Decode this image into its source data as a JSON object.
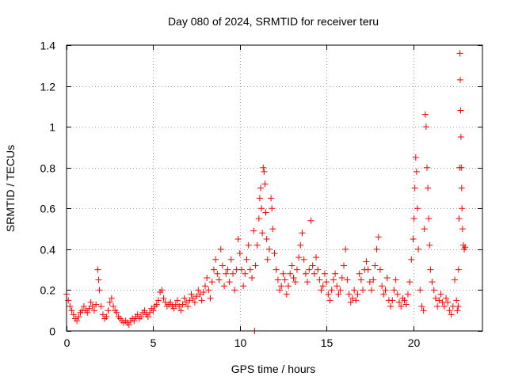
{
  "chart_data": {
    "type": "scatter",
    "title": "Day 080 of 2024, SRMTID for receiver teru",
    "xlabel": "GPS time / hours",
    "ylabel": "SRMTID / TECUs",
    "xlim": [
      0,
      24
    ],
    "ylim": [
      0,
      1.4
    ],
    "xticks": [
      0,
      5,
      10,
      15,
      20
    ],
    "xtick_labels": [
      "0",
      "5",
      "10",
      "15",
      "20"
    ],
    "yticks": [
      0,
      0.2,
      0.4,
      0.6,
      0.8,
      1.0,
      1.2,
      1.4
    ],
    "ytick_labels": [
      "0",
      "0.2",
      "0.4",
      "0.6",
      "0.8",
      "1",
      "1.2",
      "1.4"
    ],
    "grid": true,
    "marker": "plus",
    "color": "#ff0000",
    "series": [
      {
        "name": "SRMTID",
        "points": [
          [
            0.0,
            0.18
          ],
          [
            0.1,
            0.15
          ],
          [
            0.2,
            0.12
          ],
          [
            0.3,
            0.1
          ],
          [
            0.4,
            0.08
          ],
          [
            0.5,
            0.06
          ],
          [
            0.6,
            0.05
          ],
          [
            0.7,
            0.07
          ],
          [
            0.8,
            0.09
          ],
          [
            0.9,
            0.1
          ],
          [
            1.0,
            0.12
          ],
          [
            1.1,
            0.1
          ],
          [
            1.2,
            0.09
          ],
          [
            1.3,
            0.11
          ],
          [
            1.4,
            0.14
          ],
          [
            1.5,
            0.12
          ],
          [
            1.6,
            0.1
          ],
          [
            1.7,
            0.13
          ],
          [
            1.8,
            0.3
          ],
          [
            1.85,
            0.25
          ],
          [
            1.9,
            0.2
          ],
          [
            2.0,
            0.12
          ],
          [
            2.1,
            0.08
          ],
          [
            2.2,
            0.06
          ],
          [
            2.3,
            0.07
          ],
          [
            2.4,
            0.1
          ],
          [
            2.5,
            0.14
          ],
          [
            2.6,
            0.16
          ],
          [
            2.7,
            0.12
          ],
          [
            2.8,
            0.1
          ],
          [
            2.9,
            0.09
          ],
          [
            3.0,
            0.07
          ],
          [
            3.1,
            0.06
          ],
          [
            3.2,
            0.05
          ],
          [
            3.3,
            0.04
          ],
          [
            3.4,
            0.05
          ],
          [
            3.5,
            0.04
          ],
          [
            3.6,
            0.03
          ],
          [
            3.7,
            0.05
          ],
          [
            3.8,
            0.06
          ],
          [
            3.9,
            0.05
          ],
          [
            4.0,
            0.07
          ],
          [
            4.1,
            0.08
          ],
          [
            4.2,
            0.06
          ],
          [
            4.3,
            0.07
          ],
          [
            4.4,
            0.09
          ],
          [
            4.5,
            0.1
          ],
          [
            4.6,
            0.08
          ],
          [
            4.7,
            0.07
          ],
          [
            4.8,
            0.09
          ],
          [
            4.9,
            0.11
          ],
          [
            5.0,
            0.1
          ],
          [
            5.1,
            0.12
          ],
          [
            5.2,
            0.13
          ],
          [
            5.3,
            0.15
          ],
          [
            5.4,
            0.19
          ],
          [
            5.5,
            0.2
          ],
          [
            5.6,
            0.16
          ],
          [
            5.7,
            0.14
          ],
          [
            5.8,
            0.12
          ],
          [
            5.9,
            0.13
          ],
          [
            6.0,
            0.14
          ],
          [
            6.1,
            0.12
          ],
          [
            6.2,
            0.11
          ],
          [
            6.3,
            0.13
          ],
          [
            6.4,
            0.15
          ],
          [
            6.5,
            0.12
          ],
          [
            6.6,
            0.1
          ],
          [
            6.7,
            0.13
          ],
          [
            6.8,
            0.16
          ],
          [
            6.9,
            0.14
          ],
          [
            7.0,
            0.12
          ],
          [
            7.1,
            0.15
          ],
          [
            7.2,
            0.18
          ],
          [
            7.3,
            0.16
          ],
          [
            7.4,
            0.14
          ],
          [
            7.5,
            0.17
          ],
          [
            7.6,
            0.2
          ],
          [
            7.7,
            0.18
          ],
          [
            7.8,
            0.15
          ],
          [
            7.9,
            0.19
          ],
          [
            8.0,
            0.22
          ],
          [
            8.1,
            0.26
          ],
          [
            8.2,
            0.2
          ],
          [
            8.3,
            0.16
          ],
          [
            8.4,
            0.24
          ],
          [
            8.5,
            0.3
          ],
          [
            8.6,
            0.35
          ],
          [
            8.7,
            0.28
          ],
          [
            8.8,
            0.25
          ],
          [
            8.9,
            0.4
          ],
          [
            9.0,
            0.32
          ],
          [
            9.1,
            0.22
          ],
          [
            9.2,
            0.28
          ],
          [
            9.3,
            0.3
          ],
          [
            9.4,
            0.24
          ],
          [
            9.5,
            0.35
          ],
          [
            9.6,
            0.28
          ],
          [
            9.7,
            0.2
          ],
          [
            9.8,
            0.3
          ],
          [
            9.9,
            0.45
          ],
          [
            10.0,
            0.38
          ],
          [
            10.1,
            0.3
          ],
          [
            10.2,
            0.22
          ],
          [
            10.3,
            0.28
          ],
          [
            10.4,
            0.35
          ],
          [
            10.5,
            0.42
          ],
          [
            10.6,
            0.3
          ],
          [
            10.7,
            0.26
          ],
          [
            10.8,
            0.49
          ],
          [
            10.85,
            0.0
          ],
          [
            10.9,
            0.32
          ],
          [
            11.0,
            0.42
          ],
          [
            11.1,
            0.55
          ],
          [
            11.15,
            0.65
          ],
          [
            11.2,
            0.7
          ],
          [
            11.25,
            0.6
          ],
          [
            11.3,
            0.48
          ],
          [
            11.35,
            0.8
          ],
          [
            11.4,
            0.78
          ],
          [
            11.45,
            0.72
          ],
          [
            11.5,
            0.58
          ],
          [
            11.55,
            0.45
          ],
          [
            11.6,
            0.35
          ],
          [
            11.7,
            0.4
          ],
          [
            11.8,
            0.65
          ],
          [
            11.85,
            0.6
          ],
          [
            11.9,
            0.5
          ],
          [
            12.0,
            0.38
          ],
          [
            12.1,
            0.3
          ],
          [
            12.2,
            0.25
          ],
          [
            12.3,
            0.2
          ],
          [
            12.4,
            0.22
          ],
          [
            12.5,
            0.28
          ],
          [
            12.6,
            0.25
          ],
          [
            12.7,
            0.18
          ],
          [
            12.8,
            0.22
          ],
          [
            12.9,
            0.28
          ],
          [
            13.0,
            0.32
          ],
          [
            13.1,
            0.26
          ],
          [
            13.2,
            0.24
          ],
          [
            13.3,
            0.3
          ],
          [
            13.4,
            0.36
          ],
          [
            13.5,
            0.42
          ],
          [
            13.6,
            0.48
          ],
          [
            13.7,
            0.35
          ],
          [
            13.8,
            0.28
          ],
          [
            13.9,
            0.24
          ],
          [
            14.0,
            0.3
          ],
          [
            14.1,
            0.54
          ],
          [
            14.2,
            0.32
          ],
          [
            14.3,
            0.28
          ],
          [
            14.4,
            0.36
          ],
          [
            14.5,
            0.3
          ],
          [
            14.6,
            0.25
          ],
          [
            14.7,
            0.2
          ],
          [
            14.8,
            0.22
          ],
          [
            14.9,
            0.28
          ],
          [
            15.0,
            0.24
          ],
          [
            15.1,
            0.18
          ],
          [
            15.2,
            0.15
          ],
          [
            15.3,
            0.2
          ],
          [
            15.4,
            0.25
          ],
          [
            15.5,
            0.28
          ],
          [
            15.6,
            0.22
          ],
          [
            15.7,
            0.18
          ],
          [
            15.8,
            0.2
          ],
          [
            15.9,
            0.26
          ],
          [
            16.0,
            0.32
          ],
          [
            16.1,
            0.4
          ],
          [
            16.2,
            0.25
          ],
          [
            16.3,
            0.18
          ],
          [
            16.4,
            0.14
          ],
          [
            16.5,
            0.16
          ],
          [
            16.6,
            0.2
          ],
          [
            16.7,
            0.15
          ],
          [
            16.8,
            0.18
          ],
          [
            16.9,
            0.28
          ],
          [
            17.0,
            0.25
          ],
          [
            17.1,
            0.2
          ],
          [
            17.2,
            0.3
          ],
          [
            17.3,
            0.34
          ],
          [
            17.4,
            0.3
          ],
          [
            17.5,
            0.24
          ],
          [
            17.6,
            0.2
          ],
          [
            17.7,
            0.25
          ],
          [
            17.8,
            0.32
          ],
          [
            17.9,
            0.4
          ],
          [
            18.0,
            0.46
          ],
          [
            18.1,
            0.3
          ],
          [
            18.2,
            0.22
          ],
          [
            18.3,
            0.18
          ],
          [
            18.4,
            0.2
          ],
          [
            18.5,
            0.26
          ],
          [
            18.6,
            0.15
          ],
          [
            18.7,
            0.12
          ],
          [
            18.8,
            0.15
          ],
          [
            18.9,
            0.2
          ],
          [
            19.0,
            0.25
          ],
          [
            19.1,
            0.18
          ],
          [
            19.2,
            0.14
          ],
          [
            19.3,
            0.12
          ],
          [
            19.4,
            0.16
          ],
          [
            19.5,
            0.15
          ],
          [
            19.6,
            0.13
          ],
          [
            19.7,
            0.18
          ],
          [
            19.8,
            0.24
          ],
          [
            19.9,
            0.35
          ],
          [
            20.0,
            0.45
          ],
          [
            20.05,
            0.55
          ],
          [
            20.1,
            0.7
          ],
          [
            20.15,
            0.85
          ],
          [
            20.2,
            0.78
          ],
          [
            20.25,
            0.6
          ],
          [
            20.3,
            0.4
          ],
          [
            20.4,
            0.2
          ],
          [
            20.5,
            0.12
          ],
          [
            20.6,
            0.1
          ],
          [
            20.65,
            0.5
          ],
          [
            20.7,
            1.06
          ],
          [
            20.75,
            1.0
          ],
          [
            20.8,
            0.8
          ],
          [
            20.85,
            0.7
          ],
          [
            20.9,
            0.55
          ],
          [
            20.95,
            0.42
          ],
          [
            21.0,
            0.3
          ],
          [
            21.1,
            0.24
          ],
          [
            21.2,
            0.2
          ],
          [
            21.3,
            0.16
          ],
          [
            21.4,
            0.12
          ],
          [
            21.5,
            0.15
          ],
          [
            21.6,
            0.18
          ],
          [
            21.7,
            0.14
          ],
          [
            21.8,
            0.12
          ],
          [
            21.9,
            0.16
          ],
          [
            22.0,
            0.14
          ],
          [
            22.1,
            0.1
          ],
          [
            22.2,
            0.08
          ],
          [
            22.3,
            0.12
          ],
          [
            22.4,
            0.25
          ],
          [
            22.5,
            0.15
          ],
          [
            22.55,
            0.1
          ],
          [
            22.6,
            0.12
          ],
          [
            22.62,
            0.3
          ],
          [
            22.65,
            0.55
          ],
          [
            22.68,
            0.8
          ],
          [
            22.7,
            1.36
          ],
          [
            22.72,
            1.23
          ],
          [
            22.74,
            1.08
          ],
          [
            22.76,
            0.95
          ],
          [
            22.78,
            0.8
          ],
          [
            22.8,
            0.7
          ],
          [
            22.82,
            0.6
          ],
          [
            22.85,
            0.5
          ],
          [
            22.9,
            0.42
          ],
          [
            22.95,
            0.4
          ],
          [
            23.0,
            0.41
          ]
        ]
      }
    ]
  }
}
